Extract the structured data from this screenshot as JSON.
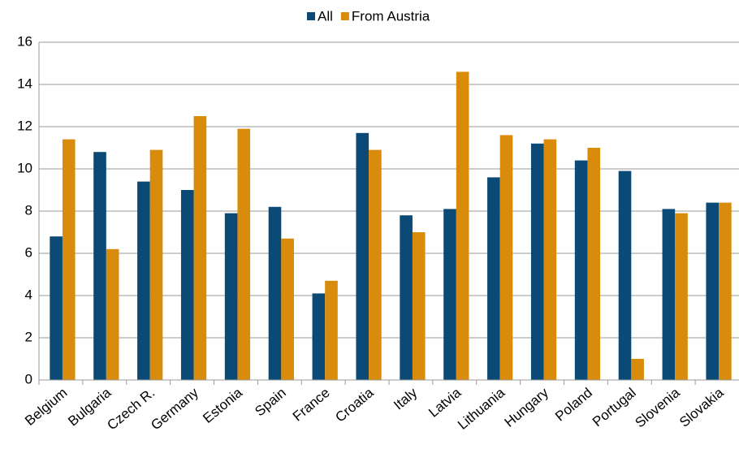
{
  "chart_data": {
    "type": "bar",
    "categories": [
      "Belgium",
      "Bulgaria",
      "Czech R.",
      "Germany",
      "Estonia",
      "Spain",
      "France",
      "Croatia",
      "Italy",
      "Latvia",
      "Lithuania",
      "Hungary",
      "Poland",
      "Portugal",
      "Slovenia",
      "Slovakia"
    ],
    "series": [
      {
        "name": "All",
        "color": "#0b4a76",
        "values": [
          6.8,
          10.8,
          9.4,
          9.0,
          7.9,
          8.2,
          4.1,
          11.7,
          7.8,
          8.1,
          9.6,
          11.2,
          10.4,
          9.9,
          8.1,
          8.4
        ]
      },
      {
        "name": "From Austria",
        "color": "#d98b0b",
        "values": [
          11.4,
          6.2,
          10.9,
          12.5,
          11.9,
          6.7,
          4.7,
          10.9,
          7.0,
          14.6,
          11.6,
          11.4,
          11.0,
          1.0,
          7.9,
          8.4
        ]
      }
    ],
    "ylim": [
      0,
      16
    ],
    "yticks": [
      0,
      2,
      4,
      6,
      8,
      10,
      12,
      14,
      16
    ],
    "grid": true,
    "legend": "top"
  }
}
